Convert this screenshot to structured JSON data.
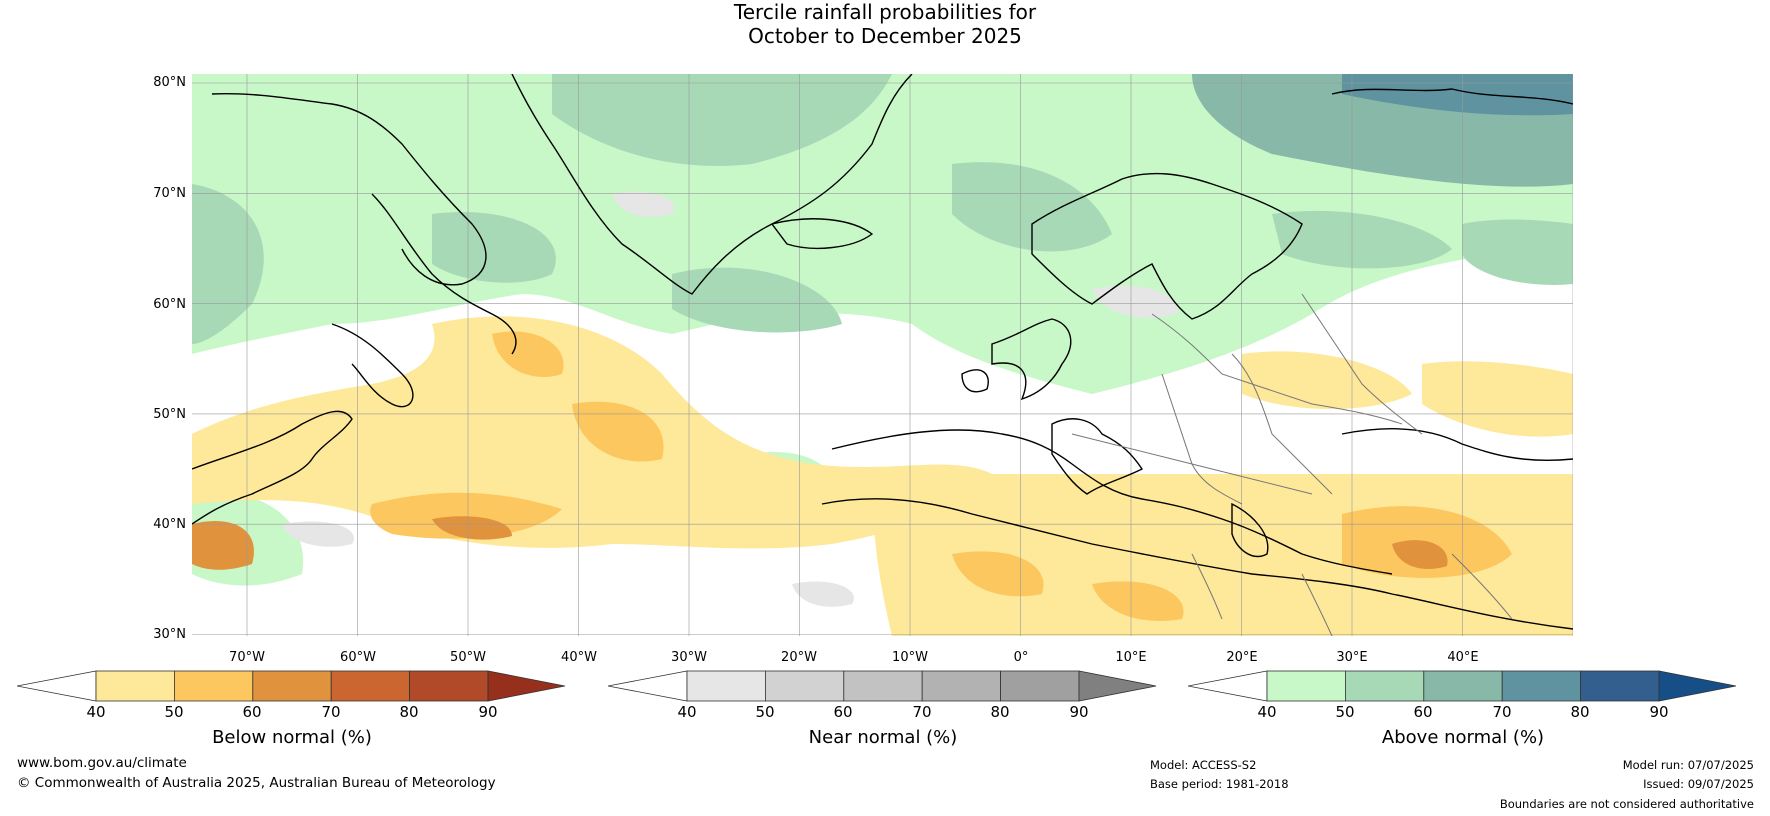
{
  "title": {
    "line1": "Tercile rainfall probabilities for",
    "line2": "October to December 2025"
  },
  "latitude_labels": [
    "80°N",
    "70°N",
    "60°N",
    "50°N",
    "40°N",
    "30°N"
  ],
  "longitude_labels": [
    "70°W",
    "60°W",
    "50°W",
    "40°W",
    "30°W",
    "20°W",
    "10°W",
    "0°",
    "10°E",
    "20°E",
    "30°E",
    "40°E"
  ],
  "colorbars": [
    {
      "title": "Below normal (%)",
      "ticks": [
        "40",
        "50",
        "60",
        "70",
        "80",
        "90"
      ],
      "colors": [
        "#ffffff",
        "#fee89a",
        "#fdc75f",
        "#e0923c",
        "#cc6631",
        "#b04a28",
        "#96301c"
      ]
    },
    {
      "title": "Near normal (%)",
      "ticks": [
        "40",
        "50",
        "60",
        "70",
        "80",
        "90"
      ],
      "colors": [
        "#ffffff",
        "#e6e6e6",
        "#d2d2d2",
        "#c2c2c2",
        "#b2b2b2",
        "#a0a0a0",
        "#808080"
      ]
    },
    {
      "title": "Above normal (%)",
      "ticks": [
        "40",
        "50",
        "60",
        "70",
        "80",
        "90"
      ],
      "colors": [
        "#ffffff",
        "#c8f7c8",
        "#a7d9b6",
        "#87b8a8",
        "#5f93a0",
        "#335f8f",
        "#164f88"
      ]
    }
  ],
  "footer": {
    "website": "www.bom.gov.au/climate",
    "copyright": "© Commonwealth of Australia 2025, Australian Bureau of Meteorology",
    "model": "Model: ACCESS-S2",
    "base_period": "Base period: 1981-2018",
    "model_run": "Model run: 07/07/2025",
    "issued": "Issued: 09/07/2025",
    "disclaimer": "Boundaries are not considered authoritative"
  }
}
